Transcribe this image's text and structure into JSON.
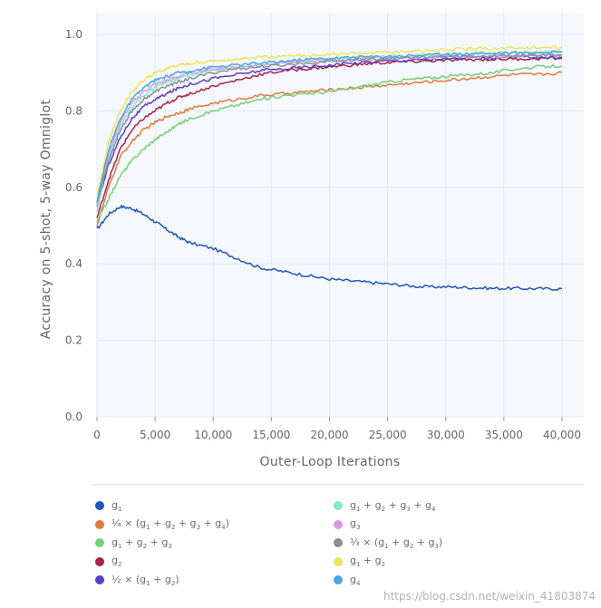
{
  "chart_data": {
    "type": "line",
    "title": "",
    "xlabel": "Outer-Loop Iterations",
    "ylabel": "Accuracy on 5-shot, 5-way Omniglot",
    "xlim": [
      0,
      40000
    ],
    "ylim": [
      0.0,
      1.0
    ],
    "x_ticks": [
      "0",
      "5,000",
      "10,000",
      "15,000",
      "20,000",
      "25,000",
      "30,000",
      "35,000",
      "40,000"
    ],
    "y_ticks": [
      "0.0",
      "0.2",
      "0.4",
      "0.6",
      "0.8",
      "1.0"
    ],
    "grid": true,
    "legend_placement": "bottom",
    "x": [
      0,
      1000,
      2000,
      3000,
      4000,
      5000,
      6000,
      7000,
      8000,
      10000,
      12000,
      14000,
      16000,
      18000,
      20000,
      22000,
      24000,
      26000,
      28000,
      30000,
      32000,
      34000,
      36000,
      38000,
      40000
    ],
    "series": [
      {
        "name": "g1",
        "color": "#2057b8",
        "values": [
          0.49,
          0.53,
          0.55,
          0.545,
          0.53,
          0.51,
          0.49,
          0.47,
          0.455,
          0.44,
          0.415,
          0.39,
          0.38,
          0.37,
          0.36,
          0.355,
          0.35,
          0.345,
          0.34,
          0.34,
          0.338,
          0.336,
          0.336,
          0.335,
          0.335
        ]
      },
      {
        "name": "½ × (g1 + g2)",
        "color": "#e07a3e",
        "values": [
          0.5,
          0.6,
          0.68,
          0.72,
          0.75,
          0.77,
          0.785,
          0.795,
          0.805,
          0.82,
          0.83,
          0.84,
          0.845,
          0.85,
          0.855,
          0.86,
          0.865,
          0.87,
          0.875,
          0.88,
          0.885,
          0.89,
          0.895,
          0.895,
          0.9
        ]
      },
      {
        "name": "g1 + g2",
        "color": "#74d17a",
        "values": [
          0.51,
          0.57,
          0.63,
          0.67,
          0.7,
          0.725,
          0.745,
          0.765,
          0.78,
          0.8,
          0.815,
          0.83,
          0.84,
          0.845,
          0.85,
          0.86,
          0.87,
          0.88,
          0.885,
          0.89,
          0.895,
          0.9,
          0.91,
          0.915,
          0.918
        ]
      },
      {
        "name": "g2",
        "color": "#a8234a",
        "values": [
          0.52,
          0.62,
          0.7,
          0.75,
          0.78,
          0.8,
          0.82,
          0.835,
          0.845,
          0.865,
          0.88,
          0.895,
          0.905,
          0.91,
          0.915,
          0.92,
          0.925,
          0.928,
          0.93,
          0.932,
          0.934,
          0.935,
          0.936,
          0.937,
          0.938
        ]
      },
      {
        "name": "⅓ × (g1 + g2 + g3)",
        "color": "#5b3fc4",
        "values": [
          0.55,
          0.66,
          0.73,
          0.78,
          0.81,
          0.83,
          0.845,
          0.86,
          0.87,
          0.885,
          0.895,
          0.905,
          0.91,
          0.915,
          0.92,
          0.925,
          0.93,
          0.932,
          0.934,
          0.936,
          0.937,
          0.938,
          0.94,
          0.94,
          0.94
        ]
      },
      {
        "name": "g1 + g2 + g3",
        "color": "#7fe8c8",
        "values": [
          0.54,
          0.68,
          0.76,
          0.81,
          0.84,
          0.86,
          0.875,
          0.885,
          0.895,
          0.905,
          0.915,
          0.92,
          0.925,
          0.93,
          0.935,
          0.94,
          0.942,
          0.944,
          0.946,
          0.948,
          0.95,
          0.952,
          0.953,
          0.954,
          0.955
        ]
      },
      {
        "name": "g3",
        "color": "#d99be0",
        "values": [
          0.55,
          0.69,
          0.77,
          0.82,
          0.85,
          0.87,
          0.88,
          0.89,
          0.9,
          0.91,
          0.915,
          0.92,
          0.925,
          0.93,
          0.932,
          0.934,
          0.936,
          0.938,
          0.94,
          0.94,
          0.941,
          0.942,
          0.943,
          0.944,
          0.945
        ]
      },
      {
        "name": "¼ × (g1 + g2 + g3 + g4)",
        "color": "#8d8d99",
        "values": [
          0.56,
          0.67,
          0.75,
          0.8,
          0.83,
          0.85,
          0.865,
          0.875,
          0.885,
          0.9,
          0.91,
          0.915,
          0.92,
          0.925,
          0.93,
          0.933,
          0.936,
          0.938,
          0.94,
          0.942,
          0.943,
          0.944,
          0.945,
          0.946,
          0.947
        ]
      },
      {
        "name": "g1 + g2 + g3 + g4",
        "color": "#eee45a",
        "values": [
          0.57,
          0.72,
          0.8,
          0.85,
          0.88,
          0.9,
          0.91,
          0.92,
          0.925,
          0.93,
          0.935,
          0.94,
          0.942,
          0.945,
          0.948,
          0.95,
          0.952,
          0.955,
          0.957,
          0.96,
          0.962,
          0.963,
          0.965,
          0.965,
          0.966
        ]
      },
      {
        "name": "g4",
        "color": "#4aa6e0",
        "values": [
          0.56,
          0.7,
          0.78,
          0.83,
          0.86,
          0.88,
          0.89,
          0.9,
          0.905,
          0.915,
          0.92,
          0.925,
          0.93,
          0.935,
          0.938,
          0.94,
          0.942,
          0.944,
          0.946,
          0.948,
          0.95,
          0.951,
          0.952,
          0.953,
          0.954
        ]
      }
    ]
  },
  "legend": [
    {
      "base": "g",
      "subs": [
        "1"
      ],
      "html": "g<sub>1</sub>"
    },
    {
      "html": "g<sub>1</sub> + g<sub>2</sub> + g<sub>3</sub>"
    },
    {
      "html": "½ × (g<sub>1</sub> + g<sub>2</sub>)"
    },
    {
      "html": "g<sub>3</sub>"
    },
    {
      "html": "g<sub>1</sub> + g<sub>2</sub>"
    },
    {
      "html": "¼ × (g<sub>1</sub> + g<sub>2</sub> + g<sub>3</sub> + g<sub>4</sub>)"
    },
    {
      "html": "g<sub>2</sub>"
    },
    {
      "html": "g<sub>1</sub> + g<sub>2</sub> + g<sub>3</sub> + g<sub>4</sub>"
    },
    {
      "html": "⅓ × (g<sub>1</sub> + g<sub>2</sub> + g<sub>3</sub>)"
    },
    {
      "html": "g<sub>4</sub>"
    }
  ],
  "legend_order": [
    0,
    5,
    1,
    6,
    2,
    7,
    3,
    8,
    4,
    9
  ],
  "watermark": "https://blog.csdn.net/weixin_41803874"
}
